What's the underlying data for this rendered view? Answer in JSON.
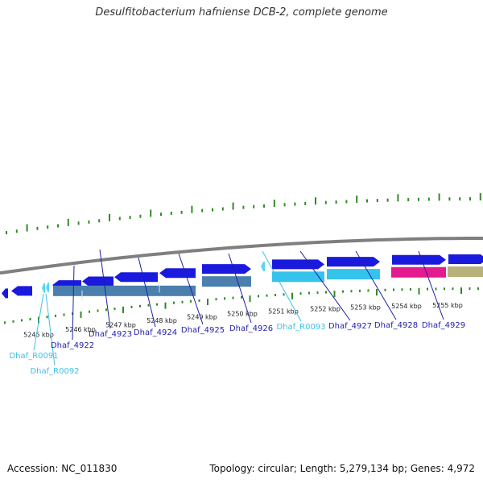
{
  "title": "Desulfitobacterium hafniense DCB-2, complete genome",
  "footer": {
    "accession": "Accession: NC_011830",
    "summary": "Topology: circular; Length: 5,279,134 bp; Genes: 4,972"
  },
  "colors": {
    "backbone": "#7f7f7f",
    "cds": "#1a1adf",
    "rna": "#59d7f5",
    "gene_track": "#4a7fae",
    "rna_track": "#35c3ec",
    "pink_track": "#e31b8e",
    "tan_track": "#b8b27a",
    "tick": "#2e8b24",
    "gene_label": "#1f1fa8",
    "rna_label": "#40c0e8",
    "scale_text": "#222222"
  },
  "scale_labels": [
    "5245 kbp",
    "5246 kbp",
    "5247 kbp",
    "5248 kbp",
    "5249 kbp",
    "5250 kbp",
    "5251 kbp",
    "5252 kbp",
    "5253 kbp",
    "5254 kbp",
    "5255 kbp"
  ],
  "gene_labels": [
    {
      "text": "Dhaf_R0091",
      "kind": "rna"
    },
    {
      "text": "Dhaf_R0092",
      "kind": "rna"
    },
    {
      "text": "Dhaf_4922",
      "kind": "cds"
    },
    {
      "text": "Dhaf_4923",
      "kind": "cds"
    },
    {
      "text": "Dhaf_4924",
      "kind": "cds"
    },
    {
      "text": "Dhaf_4925",
      "kind": "cds"
    },
    {
      "text": "Dhaf_4926",
      "kind": "cds"
    },
    {
      "text": "Dhaf_R0093",
      "kind": "rna"
    },
    {
      "text": "Dhaf_4927",
      "kind": "cds"
    },
    {
      "text": "Dhaf_4928",
      "kind": "cds"
    },
    {
      "text": "Dhaf_4929",
      "kind": "cds"
    }
  ]
}
